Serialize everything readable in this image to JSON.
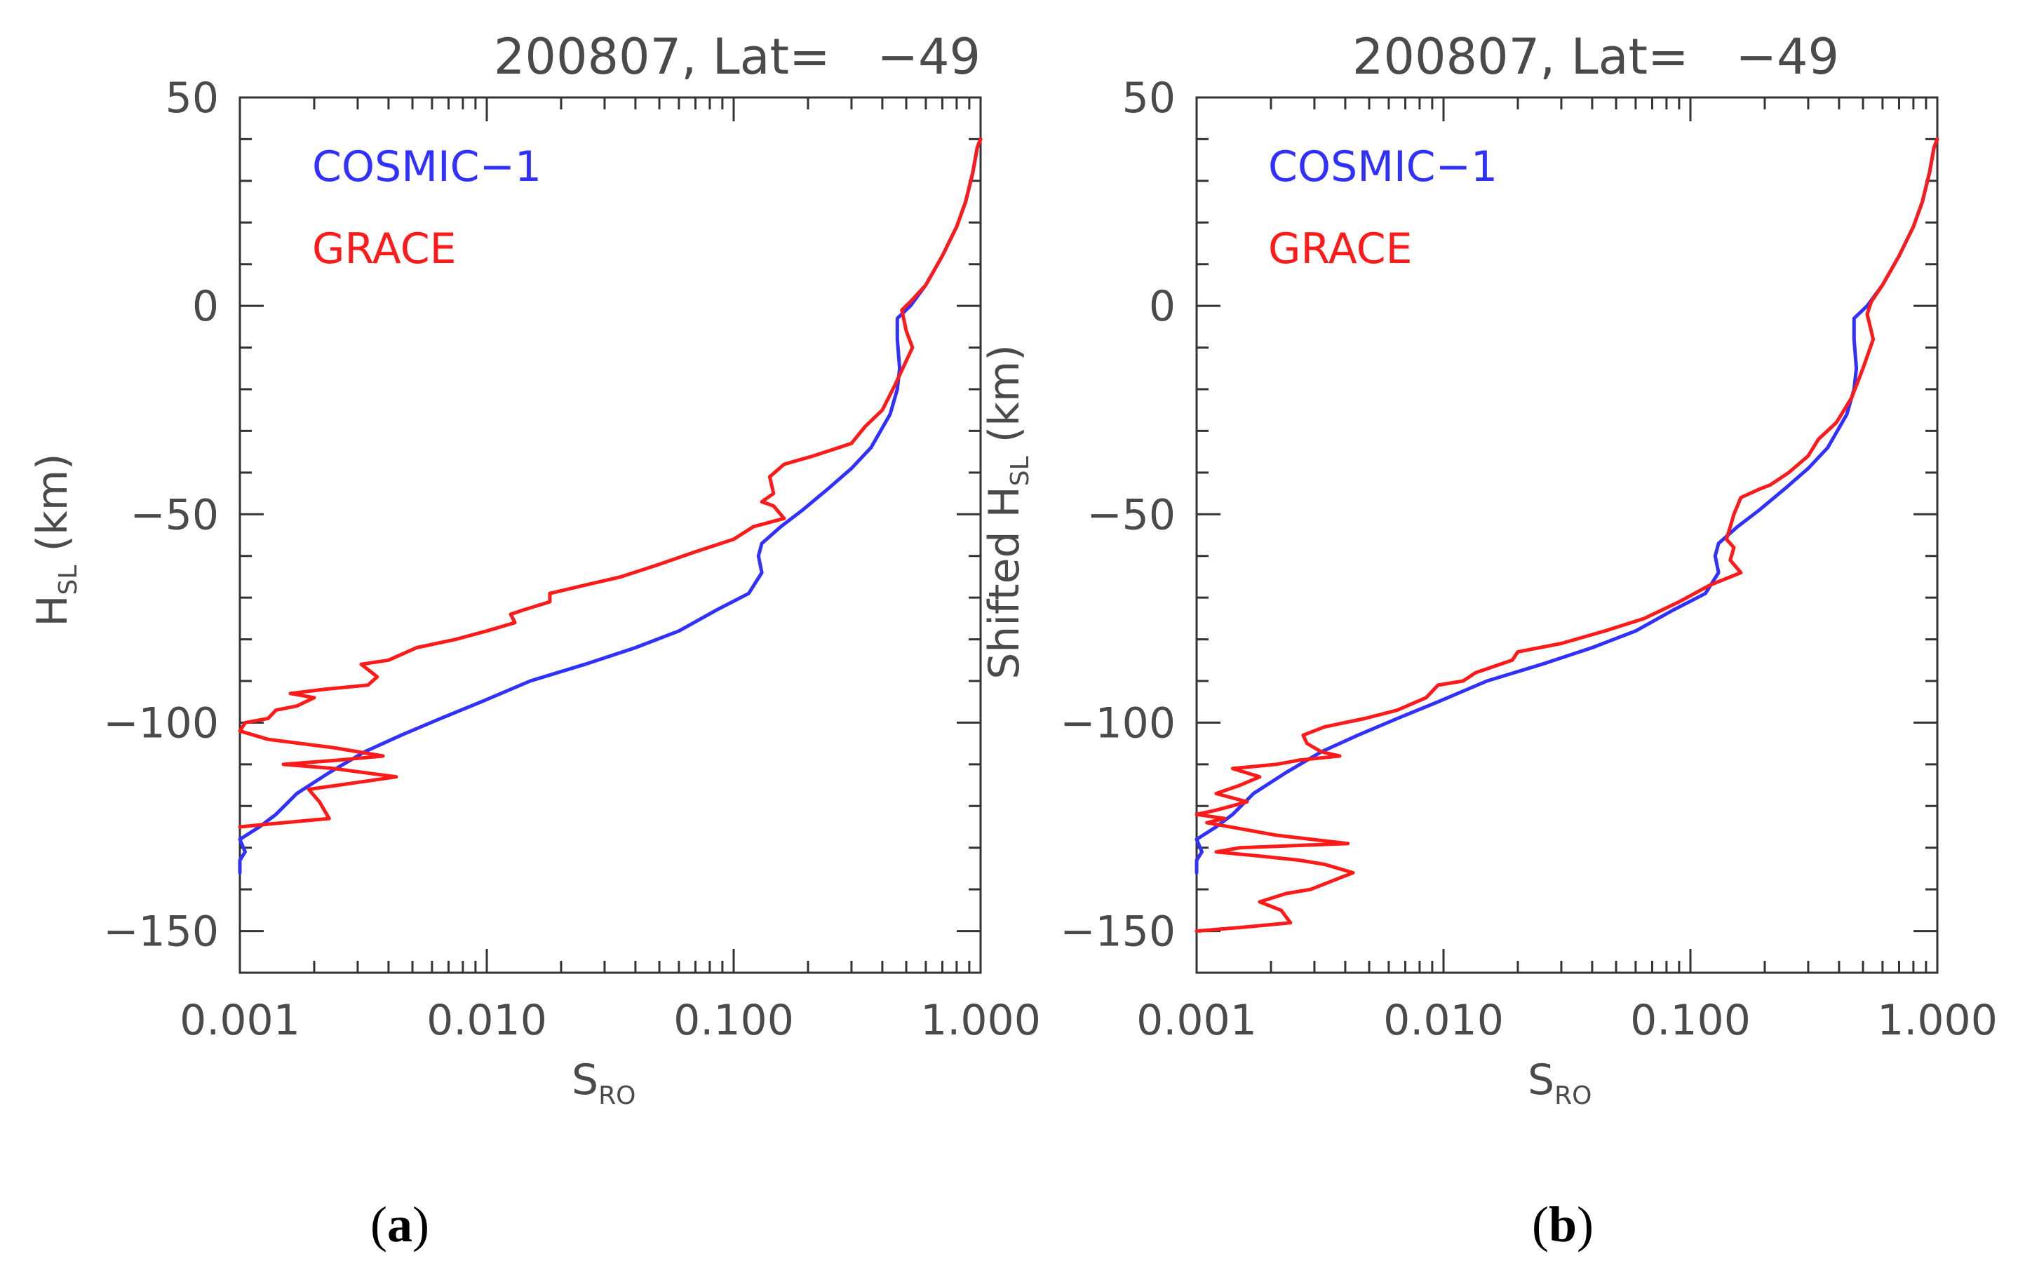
{
  "colors": {
    "cosmic": "#3030ff",
    "grace": "#ff1a1a",
    "axis": "#333333",
    "text": "#4a4a4a"
  },
  "chart_data": [
    {
      "type": "line",
      "panel_label": "a",
      "title": "200807, Lat=   −49",
      "xlabel": {
        "main": "S",
        "sub": "RO"
      },
      "ylabel": {
        "prefix": "",
        "main": "H",
        "sub": "SL",
        "suffix": " (km)"
      },
      "xscale": "log",
      "xlim": [
        0.001,
        1.0
      ],
      "ylim": [
        -160,
        50
      ],
      "xticks": [
        0.001,
        0.01,
        0.1,
        1.0
      ],
      "xtick_labels": [
        "0.001",
        "0.010",
        "0.100",
        "1.000"
      ],
      "yticks": [
        50,
        0,
        -50,
        -100,
        -150
      ],
      "ytick_labels": [
        "50",
        "0",
        "−50",
        "−100",
        "−150"
      ],
      "legend": [
        "COSMIC−1",
        "GRACE"
      ],
      "series": [
        {
          "name": "COSMIC−1",
          "color": "#3030ff",
          "points": [
            [
              0.001,
              -136
            ],
            [
              0.001,
              -133
            ],
            [
              0.00105,
              -131
            ],
            [
              0.001,
              -128
            ],
            [
              0.0012,
              -125
            ],
            [
              0.0014,
              -122
            ],
            [
              0.0017,
              -117
            ],
            [
              0.0023,
              -112
            ],
            [
              0.0032,
              -107
            ],
            [
              0.0045,
              -103
            ],
            [
              0.0065,
              -99
            ],
            [
              0.0095,
              -95
            ],
            [
              0.015,
              -90
            ],
            [
              0.025,
              -86
            ],
            [
              0.04,
              -82
            ],
            [
              0.06,
              -78
            ],
            [
              0.085,
              -73
            ],
            [
              0.115,
              -69
            ],
            [
              0.13,
              -64
            ],
            [
              0.126,
              -60
            ],
            [
              0.13,
              -57
            ],
            [
              0.155,
              -53
            ],
            [
              0.19,
              -49
            ],
            [
              0.24,
              -44
            ],
            [
              0.3,
              -39
            ],
            [
              0.36,
              -34
            ],
            [
              0.43,
              -26
            ],
            [
              0.46,
              -20
            ],
            [
              0.47,
              -15
            ],
            [
              0.46,
              -8
            ],
            [
              0.46,
              -3
            ],
            [
              0.52,
              0
            ],
            [
              0.6,
              5
            ],
            [
              0.7,
              12
            ],
            [
              0.8,
              19
            ],
            [
              0.87,
              25
            ],
            [
              0.93,
              32
            ],
            [
              0.97,
              38
            ],
            [
              1.0,
              40
            ]
          ]
        },
        {
          "name": "GRACE",
          "color": "#ff1a1a",
          "points": [
            [
              0.001,
              -125
            ],
            [
              0.0015,
              -124
            ],
            [
              0.0023,
              -123
            ],
            [
              0.0021,
              -119
            ],
            [
              0.0019,
              -116
            ],
            [
              0.0025,
              -115
            ],
            [
              0.0043,
              -113
            ],
            [
              0.0024,
              -111
            ],
            [
              0.0015,
              -110
            ],
            [
              0.0025,
              -109
            ],
            [
              0.0038,
              -108
            ],
            [
              0.0024,
              -106
            ],
            [
              0.0013,
              -104
            ],
            [
              0.001,
              -102
            ],
            [
              0.00105,
              -100
            ],
            [
              0.0013,
              -99
            ],
            [
              0.0014,
              -97
            ],
            [
              0.0017,
              -96
            ],
            [
              0.002,
              -94
            ],
            [
              0.0016,
              -93
            ],
            [
              0.0022,
              -92
            ],
            [
              0.0033,
              -91
            ],
            [
              0.0036,
              -89
            ],
            [
              0.0031,
              -86
            ],
            [
              0.004,
              -85
            ],
            [
              0.0052,
              -82
            ],
            [
              0.0075,
              -80
            ],
            [
              0.01,
              -78
            ],
            [
              0.013,
              -76
            ],
            [
              0.0125,
              -74
            ],
            [
              0.014,
              -73
            ],
            [
              0.018,
              -71
            ],
            [
              0.018,
              -69
            ],
            [
              0.025,
              -67
            ],
            [
              0.035,
              -65
            ],
            [
              0.05,
              -62
            ],
            [
              0.07,
              -59
            ],
            [
              0.1,
              -56
            ],
            [
              0.12,
              -53
            ],
            [
              0.16,
              -51
            ],
            [
              0.145,
              -48
            ],
            [
              0.13,
              -47
            ],
            [
              0.145,
              -45
            ],
            [
              0.14,
              -41
            ],
            [
              0.16,
              -38
            ],
            [
              0.21,
              -36
            ],
            [
              0.3,
              -33
            ],
            [
              0.34,
              -29
            ],
            [
              0.4,
              -25
            ],
            [
              0.45,
              -19
            ],
            [
              0.53,
              -10
            ],
            [
              0.5,
              -6
            ],
            [
              0.48,
              -1
            ],
            [
              0.52,
              1
            ],
            [
              0.6,
              5
            ],
            [
              0.7,
              12
            ],
            [
              0.8,
              19
            ],
            [
              0.87,
              25
            ],
            [
              0.93,
              32
            ],
            [
              0.97,
              38
            ],
            [
              1.0,
              40
            ]
          ]
        }
      ]
    },
    {
      "type": "line",
      "panel_label": "b",
      "title": "200807, Lat=   −49",
      "xlabel": {
        "main": "S",
        "sub": "RO"
      },
      "ylabel": {
        "prefix": "Shifted ",
        "main": "H",
        "sub": "SL",
        "suffix": " (km)"
      },
      "xscale": "log",
      "xlim": [
        0.001,
        1.0
      ],
      "ylim": [
        -160,
        50
      ],
      "xticks": [
        0.001,
        0.01,
        0.1,
        1.0
      ],
      "xtick_labels": [
        "0.001",
        "0.010",
        "0.100",
        "1.000"
      ],
      "yticks": [
        50,
        0,
        -50,
        -100,
        -150
      ],
      "ytick_labels": [
        "50",
        "0",
        "−50",
        "−100",
        "−150"
      ],
      "legend": [
        "COSMIC−1",
        "GRACE"
      ],
      "series": [
        {
          "name": "COSMIC−1",
          "color": "#3030ff",
          "points": [
            [
              0.001,
              -136
            ],
            [
              0.001,
              -133
            ],
            [
              0.00105,
              -131
            ],
            [
              0.001,
              -128
            ],
            [
              0.0012,
              -125
            ],
            [
              0.0014,
              -122
            ],
            [
              0.0017,
              -117
            ],
            [
              0.0023,
              -112
            ],
            [
              0.0032,
              -107
            ],
            [
              0.0045,
              -103
            ],
            [
              0.0065,
              -99
            ],
            [
              0.0095,
              -95
            ],
            [
              0.015,
              -90
            ],
            [
              0.025,
              -86
            ],
            [
              0.04,
              -82
            ],
            [
              0.06,
              -78
            ],
            [
              0.085,
              -73
            ],
            [
              0.115,
              -69
            ],
            [
              0.13,
              -64
            ],
            [
              0.126,
              -60
            ],
            [
              0.13,
              -57
            ],
            [
              0.155,
              -53
            ],
            [
              0.19,
              -49
            ],
            [
              0.24,
              -44
            ],
            [
              0.3,
              -39
            ],
            [
              0.36,
              -34
            ],
            [
              0.43,
              -26
            ],
            [
              0.46,
              -20
            ],
            [
              0.47,
              -15
            ],
            [
              0.46,
              -8
            ],
            [
              0.46,
              -3
            ],
            [
              0.52,
              0
            ],
            [
              0.6,
              5
            ],
            [
              0.7,
              12
            ],
            [
              0.8,
              19
            ],
            [
              0.87,
              25
            ],
            [
              0.93,
              32
            ],
            [
              0.97,
              38
            ],
            [
              1.0,
              40
            ]
          ]
        },
        {
          "name": "GRACE",
          "color": "#ff1a1a",
          "points": [
            [
              0.001,
              -150
            ],
            [
              0.0016,
              -149
            ],
            [
              0.0024,
              -148
            ],
            [
              0.0022,
              -145
            ],
            [
              0.0018,
              -143
            ],
            [
              0.0023,
              -141
            ],
            [
              0.0029,
              -140
            ],
            [
              0.0043,
              -136
            ],
            [
              0.0033,
              -134
            ],
            [
              0.0026,
              -133
            ],
            [
              0.0018,
              -132
            ],
            [
              0.0012,
              -131
            ],
            [
              0.0015,
              -130
            ],
            [
              0.0041,
              -129
            ],
            [
              0.0021,
              -127
            ],
            [
              0.0011,
              -124
            ],
            [
              0.0013,
              -123
            ],
            [
              0.001,
              -122
            ],
            [
              0.0012,
              -121
            ],
            [
              0.0016,
              -119
            ],
            [
              0.0012,
              -117
            ],
            [
              0.0015,
              -115
            ],
            [
              0.0018,
              -113
            ],
            [
              0.0014,
              -111
            ],
            [
              0.0021,
              -110
            ],
            [
              0.0026,
              -109
            ],
            [
              0.0038,
              -108
            ],
            [
              0.0032,
              -107
            ],
            [
              0.0028,
              -105
            ],
            [
              0.0027,
              -103
            ],
            [
              0.0033,
              -101
            ],
            [
              0.0048,
              -99
            ],
            [
              0.0065,
              -97
            ],
            [
              0.0085,
              -94
            ],
            [
              0.0095,
              -91
            ],
            [
              0.012,
              -90
            ],
            [
              0.0135,
              -88
            ],
            [
              0.019,
              -85
            ],
            [
              0.02,
              -83
            ],
            [
              0.03,
              -81
            ],
            [
              0.045,
              -78
            ],
            [
              0.065,
              -75
            ],
            [
              0.09,
              -71
            ],
            [
              0.12,
              -67
            ],
            [
              0.16,
              -64
            ],
            [
              0.145,
              -61
            ],
            [
              0.15,
              -58
            ],
            [
              0.14,
              -56
            ],
            [
              0.145,
              -53
            ],
            [
              0.15,
              -50
            ],
            [
              0.16,
              -46
            ],
            [
              0.19,
              -44
            ],
            [
              0.21,
              -43
            ],
            [
              0.25,
              -40
            ],
            [
              0.3,
              -36
            ],
            [
              0.33,
              -32
            ],
            [
              0.39,
              -28
            ],
            [
              0.45,
              -22
            ],
            [
              0.5,
              -15
            ],
            [
              0.55,
              -8
            ],
            [
              0.52,
              -2
            ],
            [
              0.54,
              1
            ],
            [
              0.6,
              5
            ],
            [
              0.7,
              12
            ],
            [
              0.8,
              19
            ],
            [
              0.87,
              25
            ],
            [
              0.93,
              32
            ],
            [
              0.97,
              38
            ],
            [
              1.0,
              40
            ]
          ]
        }
      ]
    }
  ]
}
